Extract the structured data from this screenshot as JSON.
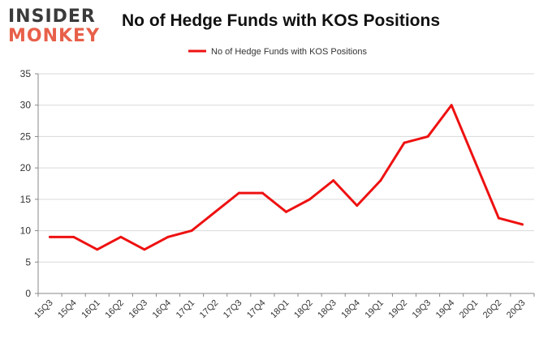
{
  "logo": {
    "line1": "INSIDER",
    "line2": "MONKEY"
  },
  "chart_data": {
    "type": "line",
    "title": "No of Hedge Funds with KOS Positions",
    "categories": [
      "15Q3",
      "15Q4",
      "16Q1",
      "16Q2",
      "16Q3",
      "16Q4",
      "17Q1",
      "17Q2",
      "17Q3",
      "17Q4",
      "18Q1",
      "18Q2",
      "18Q3",
      "18Q4",
      "19Q1",
      "19Q2",
      "19Q3",
      "19Q4",
      "20Q1",
      "20Q2",
      "20Q3"
    ],
    "series": [
      {
        "name": "No of Hedge Funds with KOS Positions",
        "values": [
          9,
          9,
          7,
          9,
          7,
          9,
          10,
          13,
          16,
          16,
          13,
          15,
          18,
          14,
          18,
          24,
          25,
          30,
          21,
          12,
          11
        ],
        "color": "#ee1111"
      }
    ],
    "ylim": [
      0,
      35
    ],
    "yticks": [
      0,
      5,
      10,
      15,
      20,
      25,
      30,
      35
    ],
    "grid": true,
    "legend": "top-center"
  }
}
